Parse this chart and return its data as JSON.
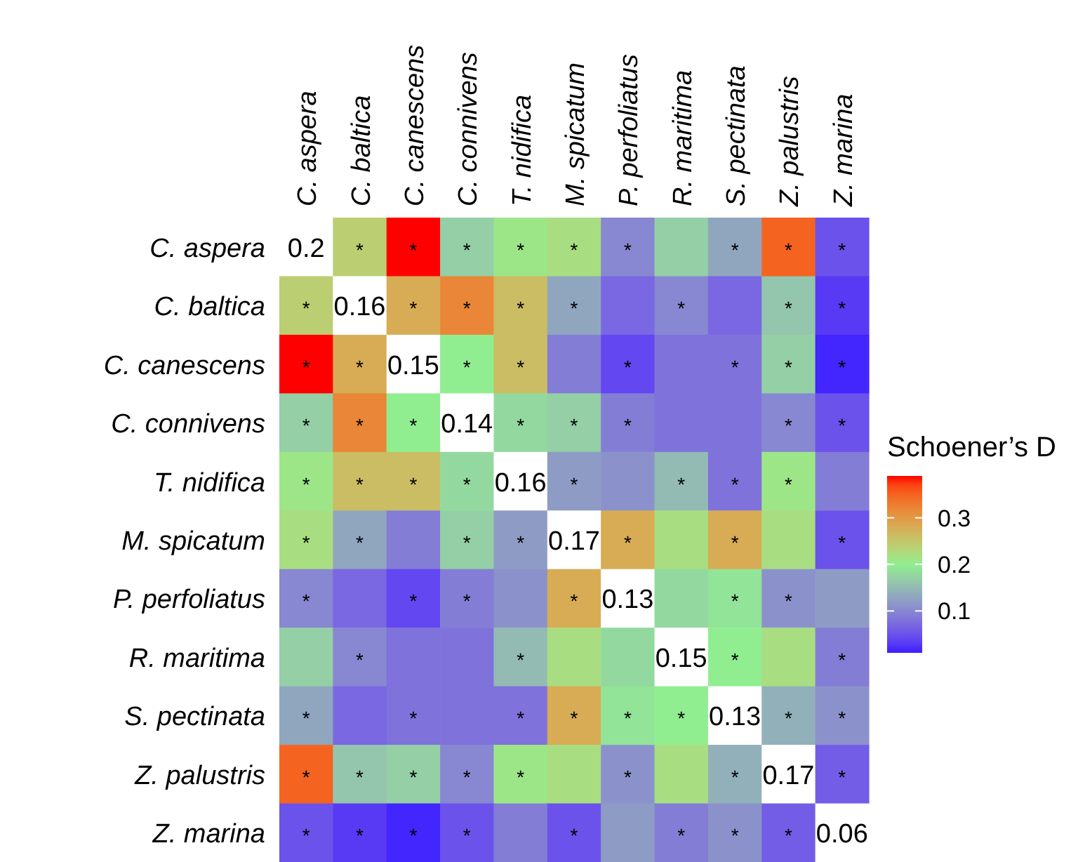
{
  "chart_data": {
    "type": "heatmap",
    "legend_title": "Schoener’s D",
    "categories": [
      "C. aspera",
      "C. baltica",
      "C. canescens",
      "C. connivens",
      "T. nidifica",
      "M. spicatum",
      "P. perfoliatus",
      "R. maritima",
      "S. pectinata",
      "Z. palustris",
      "Z. marina"
    ],
    "y_categories": [
      "C. aspera",
      "C. baltica",
      "C. canescens",
      "C. connivens",
      "T. nidifica",
      "M. spicatum",
      "P. perfoliatus",
      "R. maritima",
      "S. pectinata",
      "Z. palustris",
      "Z. marina"
    ],
    "cells": [
      [
        null,
        0.24,
        0.39,
        0.17,
        0.21,
        0.22,
        0.1,
        0.17,
        0.13,
        0.35,
        0.05
      ],
      [
        0.24,
        null,
        0.28,
        0.32,
        0.26,
        0.13,
        0.07,
        0.1,
        0.07,
        0.16,
        0.03
      ],
      [
        0.39,
        0.28,
        null,
        0.2,
        0.26,
        0.09,
        0.04,
        0.08,
        0.08,
        0.17,
        0.015
      ],
      [
        0.17,
        0.32,
        0.2,
        null,
        0.18,
        0.17,
        0.09,
        0.08,
        0.08,
        0.1,
        0.05
      ],
      [
        0.21,
        0.26,
        0.26,
        0.18,
        null,
        0.12,
        0.11,
        0.15,
        0.08,
        0.21,
        0.09
      ],
      [
        0.22,
        0.13,
        0.09,
        0.17,
        0.12,
        null,
        0.28,
        0.22,
        0.28,
        0.22,
        0.05
      ],
      [
        0.1,
        0.07,
        0.04,
        0.09,
        0.11,
        0.28,
        null,
        0.18,
        0.19,
        0.11,
        0.12
      ],
      [
        0.17,
        0.1,
        0.08,
        0.08,
        0.15,
        0.22,
        0.18,
        null,
        0.2,
        0.22,
        0.09
      ],
      [
        0.13,
        0.07,
        0.08,
        0.08,
        0.08,
        0.28,
        0.19,
        0.2,
        null,
        0.14,
        0.11
      ],
      [
        0.35,
        0.16,
        0.17,
        0.1,
        0.21,
        0.22,
        0.11,
        0.22,
        0.14,
        null,
        0.06
      ],
      [
        0.05,
        0.03,
        0.015,
        0.05,
        0.09,
        0.05,
        0.12,
        0.09,
        0.11,
        0.06,
        null
      ]
    ],
    "cell_labels": [
      [
        "0.2",
        "*",
        "*",
        "*",
        "*",
        "*",
        "*",
        null,
        "*",
        "*",
        "*"
      ],
      [
        "*",
        "0.16",
        "*",
        "*",
        "*",
        "*",
        null,
        "*",
        null,
        "*",
        "*"
      ],
      [
        "*",
        "*",
        "0.15",
        "*",
        "*",
        null,
        "*",
        null,
        "*",
        "*",
        "*"
      ],
      [
        "*",
        "*",
        "*",
        "0.14",
        "*",
        "*",
        "*",
        null,
        null,
        "*",
        "*"
      ],
      [
        "*",
        "*",
        "*",
        "*",
        "0.16",
        "*",
        null,
        "*",
        "*",
        "*",
        null
      ],
      [
        "*",
        "*",
        null,
        "*",
        "*",
        "0.17",
        "*",
        null,
        "*",
        null,
        "*"
      ],
      [
        "*",
        null,
        "*",
        "*",
        null,
        "*",
        "0.13",
        null,
        "*",
        "*",
        null
      ],
      [
        null,
        "*",
        null,
        null,
        "*",
        null,
        null,
        "0.15",
        "*",
        null,
        "*"
      ],
      [
        "*",
        null,
        "*",
        null,
        "*",
        "*",
        "*",
        "*",
        "0.13",
        "*",
        "*"
      ],
      [
        "*",
        "*",
        "*",
        "*",
        "*",
        null,
        "*",
        null,
        "*",
        "0.17",
        "*"
      ],
      [
        "*",
        "*",
        "*",
        "*",
        null,
        "*",
        null,
        "*",
        "*",
        "*",
        "0.06"
      ]
    ],
    "clim": [
      0.01,
      0.39
    ],
    "cticks": [
      0.1,
      0.2,
      0.3
    ]
  }
}
